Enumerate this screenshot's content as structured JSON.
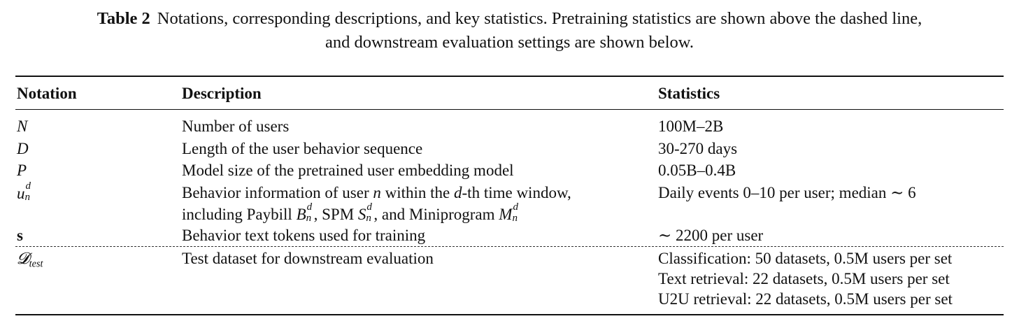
{
  "caption": {
    "label": "Table 2",
    "line1": "Notations, corresponding descriptions, and key statistics. Pretraining statistics are shown above the dashed line,",
    "line2": "and downstream evaluation settings are shown below."
  },
  "table": {
    "headers": [
      "Notation",
      "Description",
      "Statistics"
    ],
    "rows": [
      {
        "notation": "N",
        "description": "Number of users",
        "statistics": "100M–2B"
      },
      {
        "notation": "D",
        "description": "Length of the user behavior sequence",
        "statistics": "30-270 days"
      },
      {
        "notation": "P",
        "description": "Model size of the pretrained user embedding model",
        "statistics": "0.05B–0.4B"
      },
      {
        "notation_base": "u",
        "notation_sup": "d",
        "notation_sub": "n",
        "description_line1_a": "Behavior information of user ",
        "description_line1_var1": "n",
        "description_line1_b": " within the ",
        "description_line1_var2": "d",
        "description_line1_c": "-th time window,",
        "description_line2_a": "including Paybill ",
        "description_line2_sym1": "B",
        "description_line2_b": ", SPM ",
        "description_line2_sym2": "S",
        "description_line2_c": ", and Miniprogram ",
        "description_line2_sym3": "M",
        "sym_sup": "d",
        "sym_sub": "n",
        "statistics": "Daily events 0–10 per user; median ∼ 6"
      },
      {
        "notation": "s",
        "description": "Behavior text tokens used for training",
        "statistics": "∼ 2200 per user"
      },
      {
        "notation_base": "𝓓",
        "notation_sub": "test",
        "description": "Test dataset for downstream evaluation",
        "statistics": [
          "Classification: 50 datasets, 0.5M users per set",
          "Text retrieval: 22 datasets, 0.5M users per set",
          "U2U retrieval: 22 datasets, 0.5M users per set"
        ]
      }
    ]
  }
}
